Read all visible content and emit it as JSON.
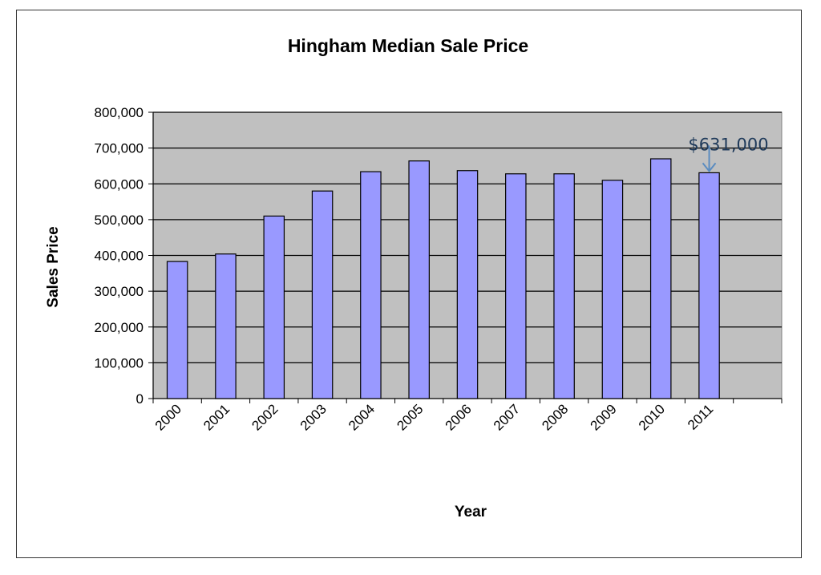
{
  "chart_data": {
    "type": "bar",
    "title": "Hingham Median Sale Price",
    "xlabel": "Year",
    "ylabel": "Sales Price",
    "categories": [
      "2000",
      "2001",
      "2002",
      "2003",
      "2004",
      "2005",
      "2006",
      "2007",
      "2008",
      "2009",
      "2010",
      "2011"
    ],
    "values": [
      383000,
      404000,
      510000,
      580000,
      634000,
      664000,
      637000,
      628000,
      628000,
      610000,
      670000,
      631000
    ],
    "ylim": [
      0,
      800000
    ],
    "yticks": [
      0,
      100000,
      200000,
      300000,
      400000,
      500000,
      600000,
      700000,
      800000
    ],
    "ytick_labels": [
      "0",
      "100,000",
      "200,000",
      "300,000",
      "400,000",
      "500,000",
      "600,000",
      "700,000",
      "800,000"
    ],
    "grid": true,
    "legend": "none",
    "colors": {
      "bar_fill": "#9999ff",
      "bar_stroke": "#000000",
      "plot_background": "#c0c0c0",
      "gridline": "#000000",
      "annotation_arrow": "#5b8cc0"
    },
    "annotations": [
      {
        "text": "$631,000",
        "category": "2011",
        "value": 631000
      }
    ]
  }
}
